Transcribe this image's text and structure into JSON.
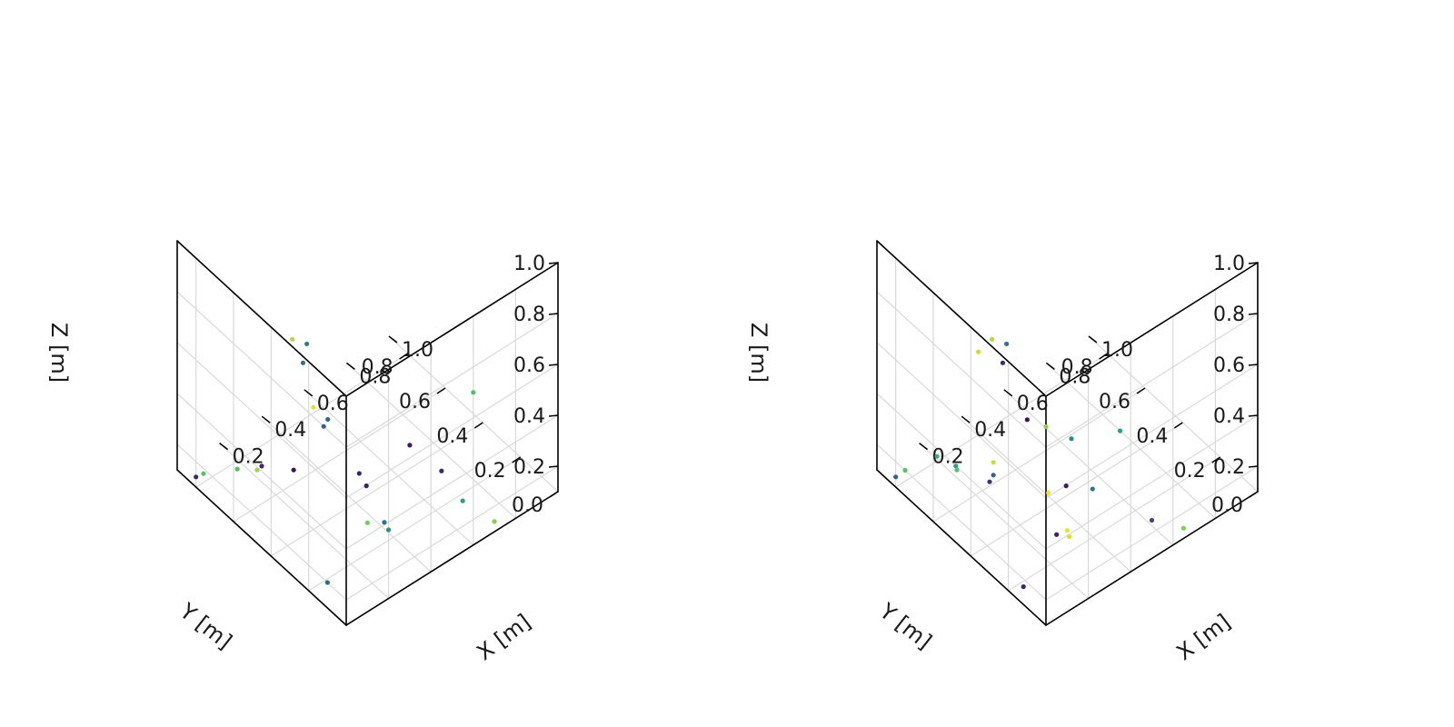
{
  "chart_data": [
    {
      "type": "scatter",
      "xlabel": "X [m]",
      "ylabel": "Y [m]",
      "zlabel": "Z [m]",
      "xlim": [
        0,
        1
      ],
      "ylim": [
        0,
        0.9
      ],
      "zlim": [
        0.1,
        1.0
      ],
      "x_ticks": [
        "0.2",
        "0.4",
        "0.6",
        "0.8",
        "1.0"
      ],
      "y_ticks": [
        "0.0",
        "0.2",
        "0.4",
        "0.6",
        "0.8"
      ],
      "z_ticks": [
        "0.2",
        "0.4",
        "0.6",
        "0.8",
        "1.0"
      ],
      "grid": true,
      "colormap": [
        "#440154",
        "#3b528b",
        "#21918c",
        "#5ec962",
        "#fde725"
      ],
      "points": [
        {
          "x": 0.0,
          "y": 0.23,
          "z": 0.975,
          "c": 0.38
        },
        {
          "x": 0.0,
          "y": 0.28,
          "z": 0.52,
          "c": 0.05
        },
        {
          "x": 0.0,
          "y": 0.45,
          "z": 0.42,
          "c": 0.12
        },
        {
          "x": 0.0,
          "y": 0.58,
          "z": 0.32,
          "c": 0.7
        },
        {
          "x": 0.0,
          "y": 0.76,
          "z": 0.18,
          "c": 0.72
        },
        {
          "x": 0.0,
          "y": 0.12,
          "z": 0.8,
          "c": 0.3
        },
        {
          "x": 0.08,
          "y": 0.3,
          "z": 0.96,
          "c": 0.43
        },
        {
          "x": 0.1,
          "y": 0.4,
          "z": 0.9,
          "c": 0.88
        },
        {
          "x": 0.3,
          "y": 0.0,
          "z": 0.65,
          "c": 0.07
        },
        {
          "x": 0.6,
          "y": 0.0,
          "z": 0.7,
          "c": 0.7
        },
        {
          "x": 0.45,
          "y": 0.0,
          "z": 0.47,
          "c": 0.12
        },
        {
          "x": 0.15,
          "y": 0.1,
          "z": 0.55,
          "c": 0.1
        },
        {
          "x": 0.2,
          "y": 0.4,
          "z": 0.58,
          "c": 0.95
        },
        {
          "x": 0.25,
          "y": 0.38,
          "z": 0.52,
          "c": 0.33
        },
        {
          "x": 0.1,
          "y": 0.0,
          "z": 0.45,
          "c": 0.78
        },
        {
          "x": 0.18,
          "y": 0.0,
          "z": 0.41,
          "c": 0.38
        },
        {
          "x": 0.2,
          "y": 0.0,
          "z": 0.37,
          "c": 0.52
        },
        {
          "x": 0.55,
          "y": 0.0,
          "z": 0.3,
          "c": 0.55
        },
        {
          "x": 0.0,
          "y": 0.1,
          "z": 0.2,
          "c": 0.35
        },
        {
          "x": 0.7,
          "y": 0.0,
          "z": 0.14,
          "c": 0.8
        },
        {
          "x": 0.45,
          "y": 0.4,
          "z": 0.14,
          "c": 0.08
        },
        {
          "x": 0.2,
          "y": 0.7,
          "z": 0.13,
          "c": 0.85
        },
        {
          "x": 0.0,
          "y": 0.8,
          "z": 0.14,
          "c": 0.12
        }
      ]
    },
    {
      "type": "scatter",
      "xlabel": "X [m]",
      "ylabel": "Y [m]",
      "zlabel": "Z [m]",
      "xlim": [
        0,
        1
      ],
      "ylim": [
        0,
        0.9
      ],
      "zlim": [
        0.1,
        1.0
      ],
      "x_ticks": [
        "0.2",
        "0.4",
        "0.6",
        "0.8",
        "1.0"
      ],
      "y_ticks": [
        "0.0",
        "0.2",
        "0.4",
        "0.6",
        "0.8"
      ],
      "z_ticks": [
        "0.2",
        "0.4",
        "0.6",
        "0.8",
        "1.0"
      ],
      "grid": true,
      "colormap": [
        "#440154",
        "#3b528b",
        "#21918c",
        "#5ec962",
        "#fde725"
      ],
      "points": [
        {
          "x": 0.0,
          "y": 0.23,
          "z": 0.975,
          "c": 0.12
        },
        {
          "x": 0.0,
          "y": 0.36,
          "z": 0.93,
          "c": 0.92
        },
        {
          "x": 0.0,
          "y": 0.1,
          "z": 0.84,
          "c": 0.05
        },
        {
          "x": 0.0,
          "y": 0.28,
          "z": 0.55,
          "c": 0.92
        },
        {
          "x": 0.0,
          "y": 0.28,
          "z": 0.5,
          "c": 0.3
        },
        {
          "x": 0.0,
          "y": 0.3,
          "z": 0.46,
          "c": 0.15
        },
        {
          "x": 0.0,
          "y": 0.48,
          "z": 0.4,
          "c": 0.55
        },
        {
          "x": 0.0,
          "y": 0.58,
          "z": 0.37,
          "c": 0.62
        },
        {
          "x": 0.0,
          "y": 0.75,
          "z": 0.2,
          "c": 0.72
        },
        {
          "x": 0.08,
          "y": 0.3,
          "z": 0.96,
          "c": 0.4
        },
        {
          "x": 0.1,
          "y": 0.4,
          "z": 0.9,
          "c": 0.88
        },
        {
          "x": 0.0,
          "y": 0.0,
          "z": 0.88,
          "c": 0.82
        },
        {
          "x": 0.12,
          "y": 0.0,
          "z": 0.77,
          "c": 0.5
        },
        {
          "x": 0.35,
          "y": 0.0,
          "z": 0.68,
          "c": 0.55
        },
        {
          "x": 0.22,
          "y": 0.0,
          "z": 0.52,
          "c": 0.38
        },
        {
          "x": 0.1,
          "y": 0.1,
          "z": 0.5,
          "c": 0.98
        },
        {
          "x": 0.05,
          "y": 0.0,
          "z": 0.43,
          "c": 0.1
        },
        {
          "x": 0.1,
          "y": 0.0,
          "z": 0.42,
          "c": 0.96
        },
        {
          "x": 0.11,
          "y": 0.0,
          "z": 0.39,
          "c": 0.94
        },
        {
          "x": 0.5,
          "y": 0.0,
          "z": 0.25,
          "c": 0.22
        },
        {
          "x": 0.0,
          "y": 0.12,
          "z": 0.17,
          "c": 0.1
        },
        {
          "x": 0.65,
          "y": 0.0,
          "z": 0.14,
          "c": 0.8
        },
        {
          "x": 0.45,
          "y": 0.4,
          "z": 0.14,
          "c": 0.08
        },
        {
          "x": 0.2,
          "y": 0.7,
          "z": 0.13,
          "c": 0.72
        },
        {
          "x": 0.0,
          "y": 0.8,
          "z": 0.14,
          "c": 0.3
        }
      ]
    }
  ]
}
